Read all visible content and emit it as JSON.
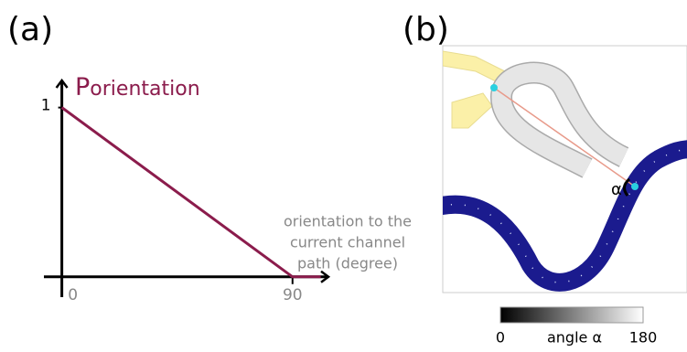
{
  "chart_data": {
    "type": "line",
    "panel_label": "(a)",
    "y_label": "P",
    "y_label_sub": "orientation",
    "x_label": [
      "orientation to the",
      "current channel",
      "path (degree)"
    ],
    "x": [
      0,
      90,
      101
    ],
    "series": [
      {
        "color": "#8b1c4c",
        "values": [
          1,
          0,
          0
        ]
      }
    ],
    "xlim": [
      -7,
      104
    ],
    "ylim": [
      -0.12,
      1.16
    ],
    "xticks": [
      0,
      90
    ],
    "yticks": [
      1
    ]
  },
  "panel_b": {
    "panel_label": "(b)",
    "angle_label": "α",
    "colorbar": {
      "min": 0,
      "label": "angle α",
      "max": 180
    }
  }
}
